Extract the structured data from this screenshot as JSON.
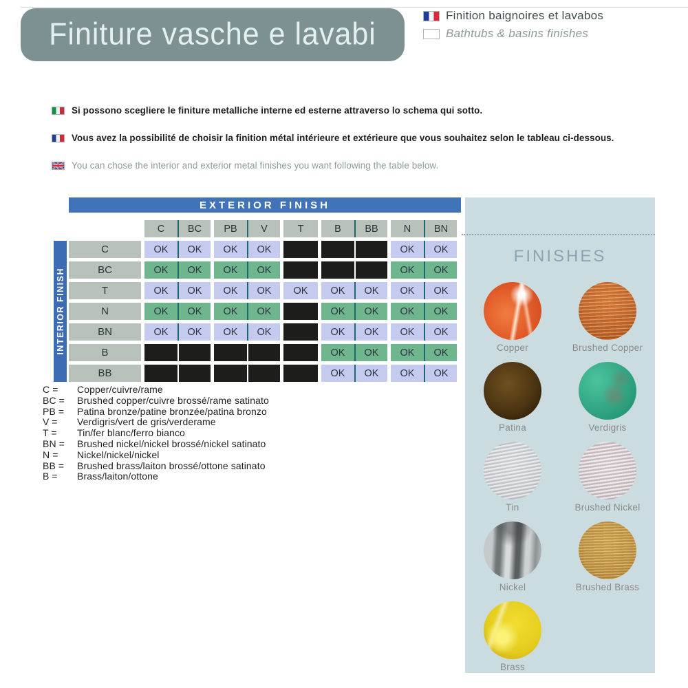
{
  "header": {
    "title": "Finiture vasche e lavabi",
    "subtitle_fr": "Finition baignoires et lavabos",
    "subtitle_en": "Bathtubs & basins finishes"
  },
  "intro": [
    {
      "flag": "italy",
      "style": "bold",
      "text": "Si possono scegliere le finiture metalliche interne ed esterne attraverso lo schema qui sotto."
    },
    {
      "flag": "france",
      "style": "bold",
      "text": "Vous avez la possibilité de choisir la finition métal intérieure et extérieure que vous souhaitez selon le tableau ci-dessous."
    },
    {
      "flag": "uk",
      "style": "muted",
      "text": "You can chose the interior and exterior metal finishes you want following the table below."
    }
  ],
  "matrix": {
    "exterior_label": "EXTERIOR FINISH",
    "interior_label": "INTERIOR FINISH",
    "column_groups": [
      [
        "C",
        "BC"
      ],
      [
        "PB",
        "V"
      ],
      [
        "T"
      ],
      [
        "B",
        "BB"
      ],
      [
        "N",
        "BN"
      ]
    ],
    "columns": [
      "C",
      "BC",
      "PB",
      "V",
      "T",
      "B",
      "BB",
      "N",
      "BN"
    ],
    "rows": [
      {
        "label": "C",
        "tone": "lavender",
        "cells": [
          "OK",
          "OK",
          "OK",
          "OK",
          "",
          "",
          "",
          "OK",
          "OK"
        ]
      },
      {
        "label": "BC",
        "tone": "green",
        "cells": [
          "OK",
          "OK",
          "OK",
          "OK",
          "",
          "",
          "",
          "OK",
          "OK"
        ]
      },
      {
        "label": "T",
        "tone": "lavender",
        "cells": [
          "OK",
          "OK",
          "OK",
          "OK",
          "OK",
          "OK",
          "OK",
          "OK",
          "OK"
        ]
      },
      {
        "label": "N",
        "tone": "green",
        "cells": [
          "OK",
          "OK",
          "OK",
          "OK",
          "",
          "OK",
          "OK",
          "OK",
          "OK"
        ]
      },
      {
        "label": "BN",
        "tone": "lavender",
        "cells": [
          "OK",
          "OK",
          "OK",
          "OK",
          "",
          "OK",
          "OK",
          "OK",
          "OK"
        ]
      },
      {
        "label": "B",
        "tone": "green",
        "cells": [
          "",
          "",
          "",
          "",
          "",
          "OK",
          "OK",
          "OK",
          "OK"
        ]
      },
      {
        "label": "BB",
        "tone": "lavender",
        "cells": [
          "",
          "",
          "",
          "",
          "",
          "OK",
          "OK",
          "OK",
          "OK"
        ]
      }
    ]
  },
  "legend": [
    {
      "code": "C =",
      "text": "Copper/cuivre/rame"
    },
    {
      "code": "BC =",
      "text": "Brushed copper/cuivre brossé/rame satinato"
    },
    {
      "code": "PB =",
      "text": "Patina bronze/patine bronzée/patina bronzo"
    },
    {
      "code": "V =",
      "text": "Verdigris/vert de gris/verderame"
    },
    {
      "code": "T =",
      "text": "Tin/fer blanc/ferro bianco"
    },
    {
      "code": "BN =",
      "text": "Brushed nickel/nickel brossé/nickel satinato"
    },
    {
      "code": "N =",
      "text": "Nickel/nickel/nickel"
    },
    {
      "code": "BB =",
      "text": "Brushed brass/laiton brossé/ottone satinato"
    },
    {
      "code": "B =",
      "text": "Brass/laiton/ottone"
    }
  ],
  "panel": {
    "title": "FINISHES",
    "swatches": [
      {
        "id": "copper",
        "label": "Copper"
      },
      {
        "id": "brushed-copper",
        "label": "Brushed Copper"
      },
      {
        "id": "patina",
        "label": "Patina"
      },
      {
        "id": "verdigris",
        "label": "Verdigris"
      },
      {
        "id": "tin",
        "label": "Tin"
      },
      {
        "id": "brushed-nickel",
        "label": "Brushed Nickel"
      },
      {
        "id": "nickel",
        "label": "Nickel"
      },
      {
        "id": "brushed-brass",
        "label": "Brushed Brass"
      },
      {
        "id": "brass",
        "label": "Brass"
      }
    ]
  },
  "colors": {
    "title_box_bg": "#7d9193",
    "bar_blue": "#4173b8",
    "int_bar_blue": "#3c6cb4",
    "cell_lavender": "#c5cbee",
    "cell_green": "#6fb68e",
    "cell_black": "#1d1d1b",
    "cell_header": "#b8c2bb",
    "divider_teal": "#19696e",
    "panel_bg": "#cbdce0"
  }
}
